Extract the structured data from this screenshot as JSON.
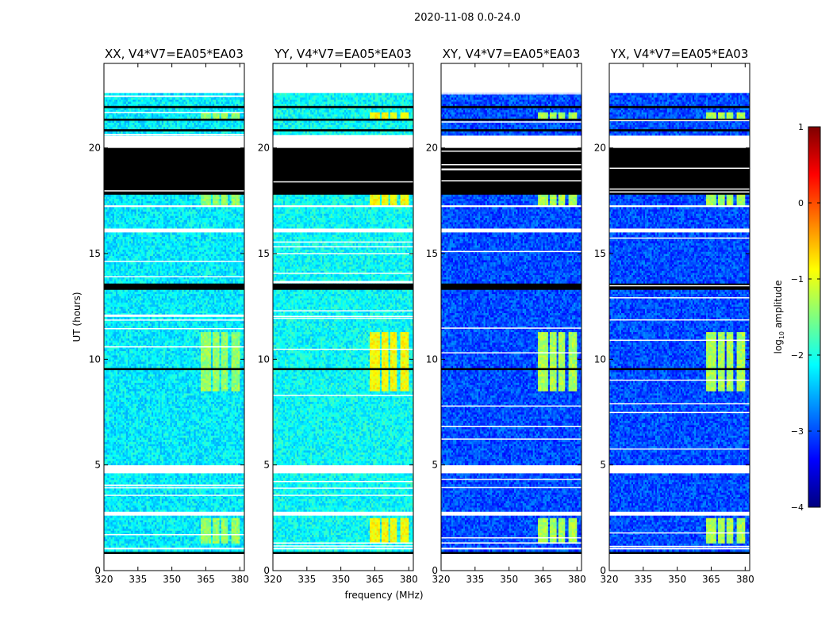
{
  "chart_data": {
    "type": "heatmap",
    "title": "2020-11-08 0.0-24.0",
    "xlabel": "frequency (MHz)",
    "ylabel": "UT (hours)",
    "xlim": [
      320,
      382
    ],
    "ylim": [
      0,
      24
    ],
    "x_ticks": [
      "320",
      "335",
      "350",
      "365",
      "380"
    ],
    "x_tick_values": [
      320,
      335,
      350,
      365,
      380
    ],
    "y_ticks": [
      "0",
      "5",
      "10",
      "15",
      "20"
    ],
    "y_tick_values": [
      0,
      5,
      10,
      15,
      20
    ],
    "colorbar": {
      "label": "log10 amplitude",
      "label_base": "log",
      "label_sub": "10",
      "label_rest": " amplitude",
      "range": [
        -4,
        1
      ],
      "ticks": [
        "1",
        "0",
        "−1",
        "−2",
        "−3",
        "−4"
      ],
      "tick_values": [
        1,
        0,
        -1,
        -2,
        -3,
        -4
      ],
      "colormap": "jet"
    },
    "panels": [
      {
        "title": "XX, V4*V7=EA05*EA03",
        "background_level": -2.2,
        "rfi_level": -1.4
      },
      {
        "title": "YY, V4*V7=EA05*EA03",
        "background_level": -2.1,
        "rfi_level": -0.9
      },
      {
        "title": "XY, V4*V7=EA05*EA03",
        "background_level": -3.0,
        "rfi_level": -1.3
      },
      {
        "title": "YX, V4*V7=EA05*EA03",
        "background_level": -3.0,
        "rfi_level": -1.3
      }
    ],
    "data_extent_hours": [
      0.8,
      22.6
    ],
    "flagged_black_hours": [
      [
        17.8,
        20.0
      ],
      [
        13.3,
        13.6
      ],
      [
        9.5,
        9.6
      ],
      [
        20.8,
        20.9
      ],
      [
        21.3,
        21.4
      ],
      [
        21.9,
        22.0
      ],
      [
        0.8,
        0.9
      ]
    ],
    "blank_white_hours": [
      [
        22.6,
        24.0
      ],
      [
        20.0,
        20.6
      ],
      [
        16.0,
        16.2
      ],
      [
        17.2,
        17.3
      ],
      [
        4.6,
        5.0
      ],
      [
        2.6,
        2.8
      ],
      [
        1.0,
        1.1
      ],
      [
        0.0,
        0.8
      ]
    ],
    "rfi_bands_mhz": [
      [
        363,
        367
      ],
      [
        368,
        371
      ],
      [
        372,
        375
      ],
      [
        376,
        380
      ]
    ],
    "rfi_active_hours": [
      [
        1.3,
        2.5
      ],
      [
        8.5,
        11.3
      ],
      [
        17.3,
        17.8
      ],
      [
        21.4,
        21.7
      ]
    ]
  }
}
